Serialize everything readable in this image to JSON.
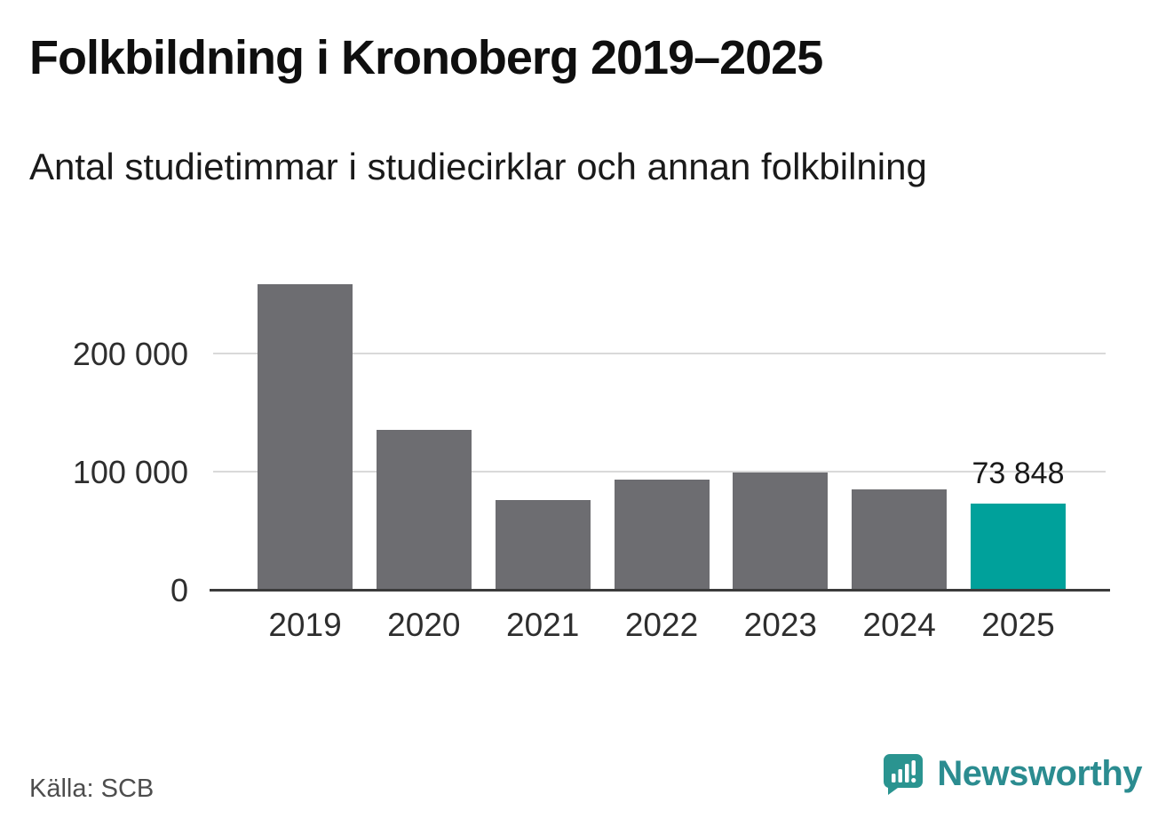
{
  "header": {
    "title": "Folkbildning i Kronoberg 2019–2025",
    "subtitle": "Antal studietimmar i studiecirklar och annan folkbilning"
  },
  "chart_data": {
    "type": "bar",
    "categories": [
      "2019",
      "2020",
      "2021",
      "2022",
      "2023",
      "2024",
      "2025"
    ],
    "values": [
      260000,
      136000,
      77000,
      94000,
      100500,
      86000,
      73848
    ],
    "highlight_index": 6,
    "bar_color": "#6d6d71",
    "highlight_color": "#00a19b",
    "value_label": {
      "index": 6,
      "text": "73 848"
    },
    "title": "Folkbildning i Kronoberg 2019–2025",
    "xlabel": "",
    "ylabel": "",
    "ylim": [
      0,
      290000
    ],
    "grid": true,
    "legend": "none",
    "y_ticks": [
      {
        "value": 0,
        "label": "0"
      },
      {
        "value": 100000,
        "label": "100 000"
      },
      {
        "value": 200000,
        "label": "200 000"
      }
    ]
  },
  "footer": {
    "source": "Källa: SCB",
    "brand": "Newsworthy",
    "brand_color": "#2b8c90"
  }
}
